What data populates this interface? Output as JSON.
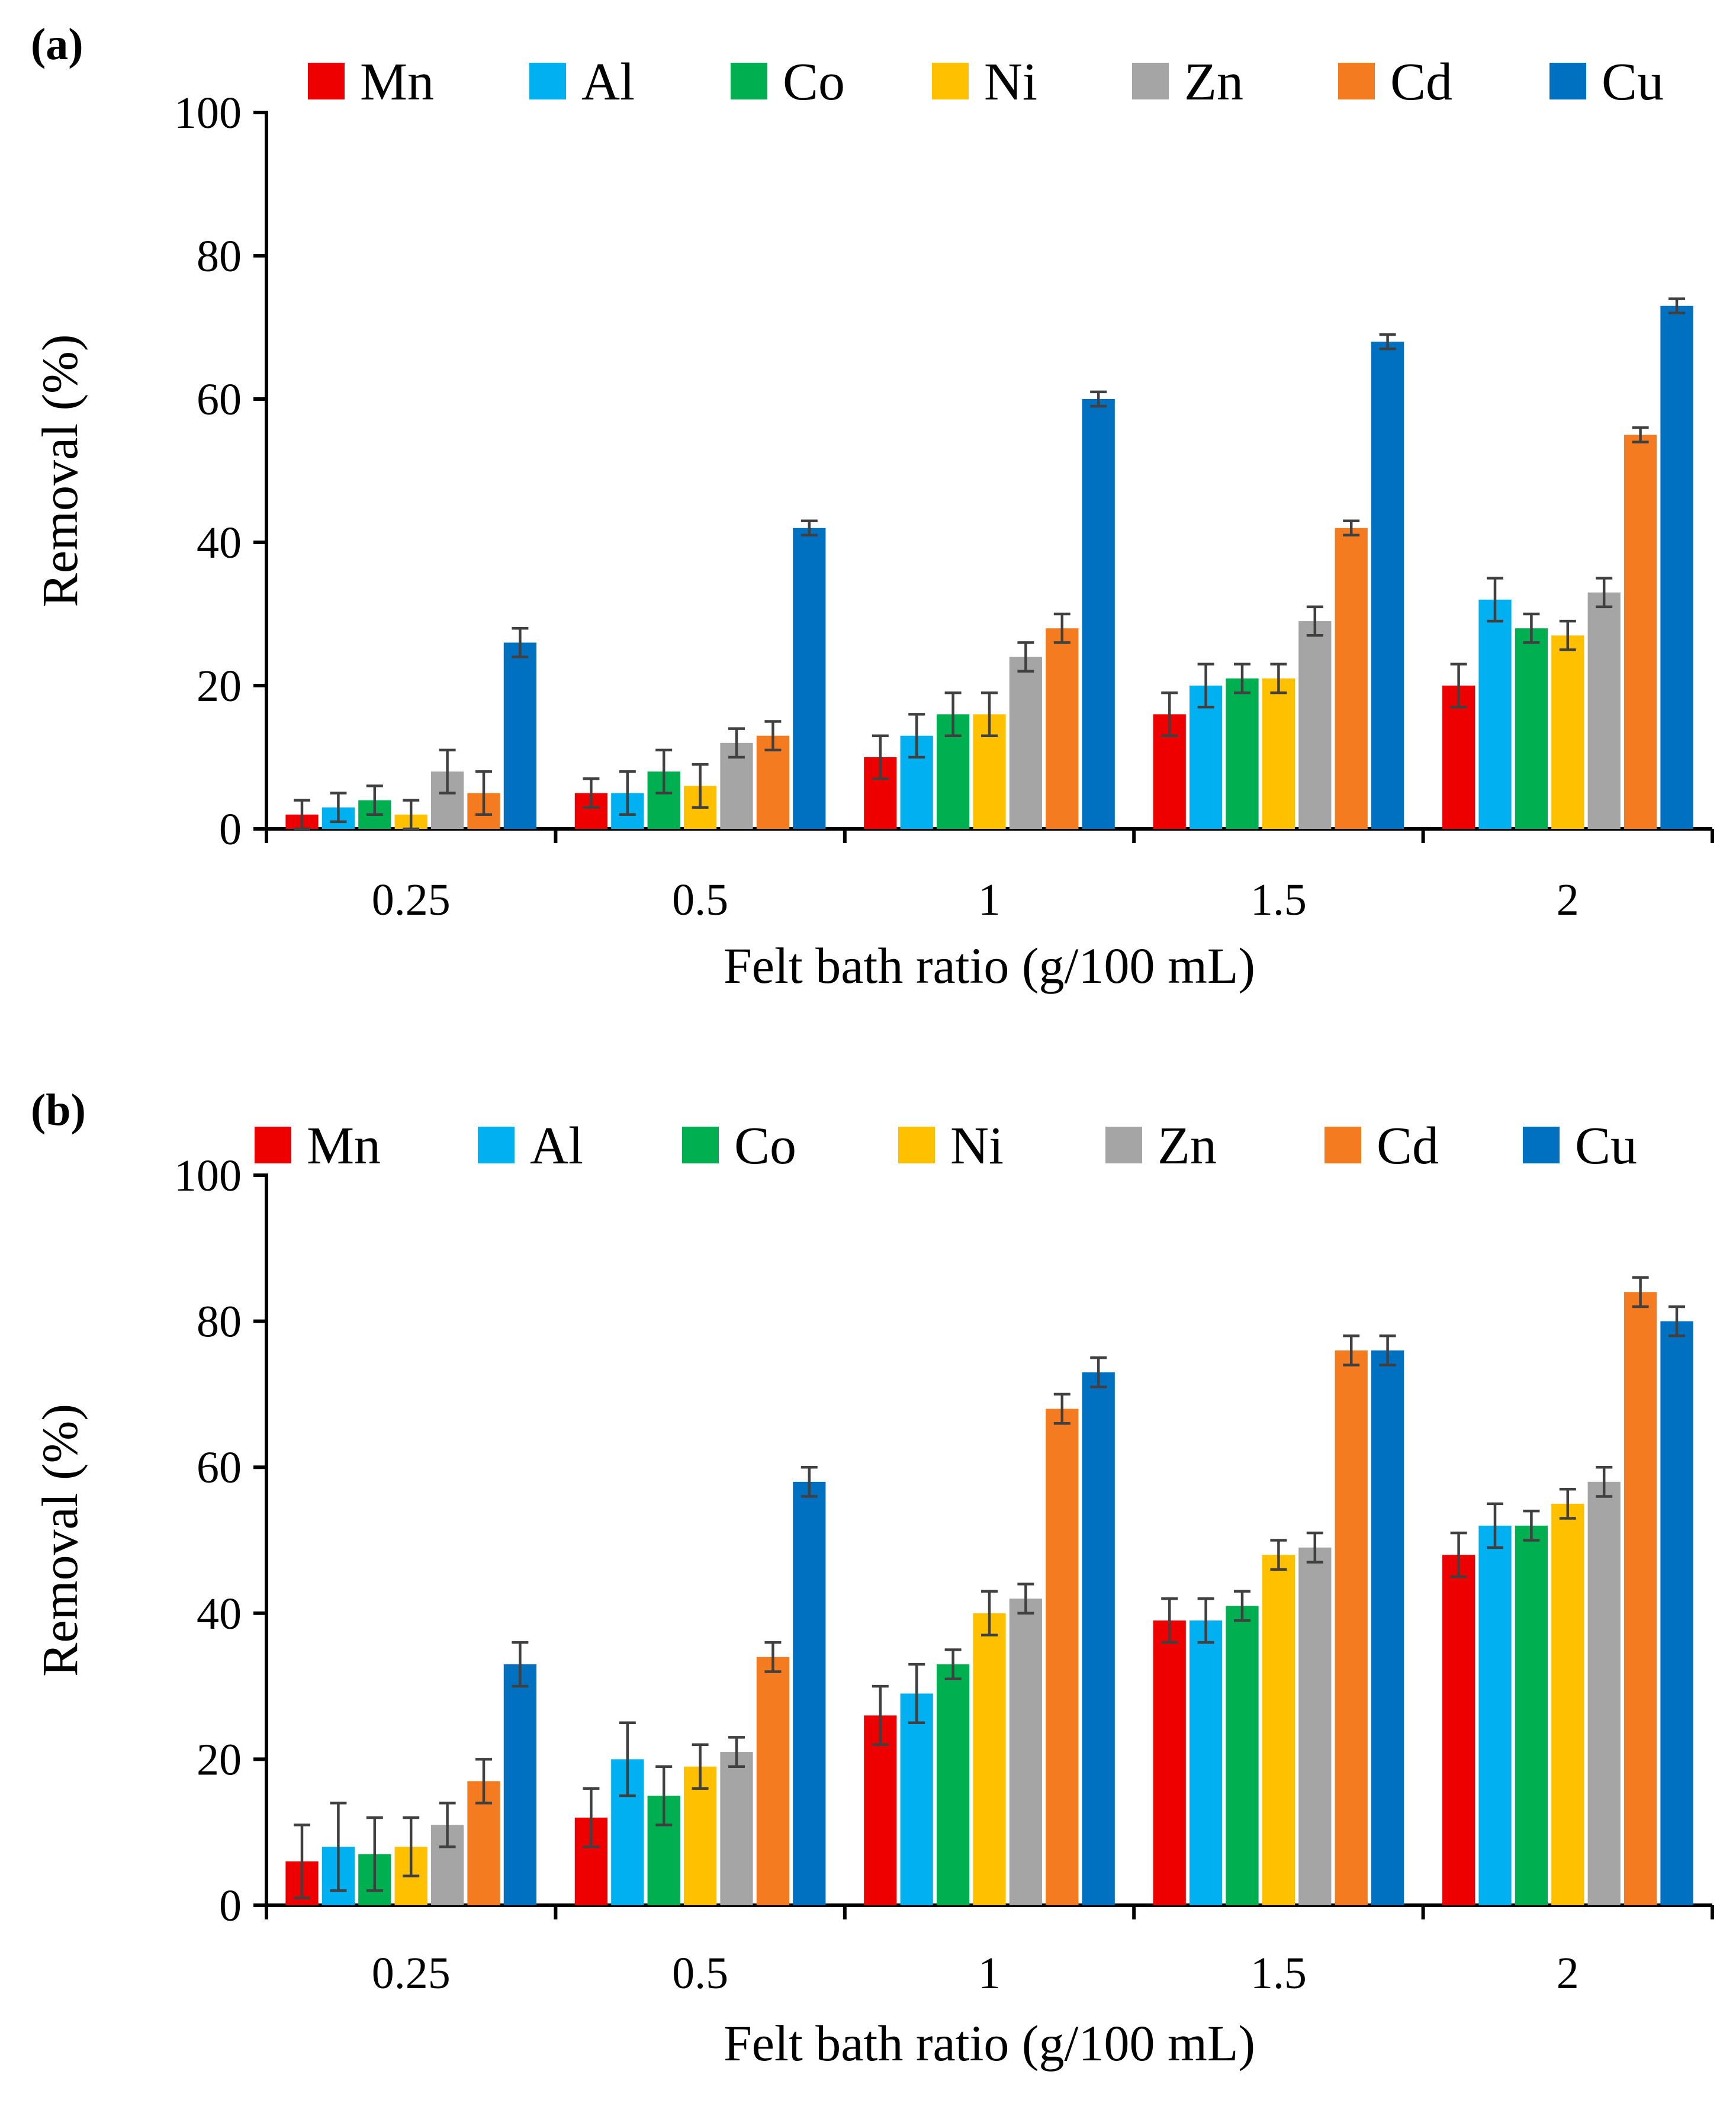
{
  "chart_data": [
    {
      "type": "bar",
      "panel_label": "(a)",
      "xlabel": "Felt bath ratio  (g/100 mL)",
      "ylabel": "Removal (%)",
      "ylim": [
        0,
        100
      ],
      "yticks": [
        "0",
        "20",
        "40",
        "60",
        "80",
        "100"
      ],
      "categories": [
        "0.25",
        "0.5",
        "1",
        "1.5",
        "2"
      ],
      "legend_position": "top",
      "series": [
        {
          "name": "Mn",
          "color": "#ee0000",
          "values": [
            2,
            5,
            10,
            16,
            20
          ],
          "errors": [
            2,
            2,
            3,
            3,
            3
          ]
        },
        {
          "name": "Al",
          "color": "#00b0f0",
          "values": [
            3,
            5,
            13,
            20,
            32
          ],
          "errors": [
            2,
            3,
            3,
            3,
            3
          ]
        },
        {
          "name": "Co",
          "color": "#00b050",
          "values": [
            4,
            8,
            16,
            21,
            28
          ],
          "errors": [
            2,
            3,
            3,
            2,
            2
          ]
        },
        {
          "name": "Ni",
          "color": "#ffc000",
          "values": [
            2,
            6,
            16,
            21,
            27
          ],
          "errors": [
            2,
            3,
            3,
            2,
            2
          ]
        },
        {
          "name": "Zn",
          "color": "#a5a5a5",
          "values": [
            8,
            12,
            24,
            29,
            33
          ],
          "errors": [
            3,
            2,
            2,
            2,
            2
          ]
        },
        {
          "name": "Cd",
          "color": "#f47b20",
          "values": [
            5,
            13,
            28,
            42,
            55
          ],
          "errors": [
            3,
            2,
            2,
            1,
            1
          ]
        },
        {
          "name": "Cu",
          "color": "#0070c0",
          "values": [
            26,
            42,
            60,
            68,
            73
          ],
          "errors": [
            2,
            1,
            1,
            1,
            1
          ]
        }
      ]
    },
    {
      "type": "bar",
      "panel_label": "(b)",
      "xlabel": "Felt bath ratio (g/100 mL)",
      "ylabel": "Removal (%)",
      "ylim": [
        0,
        100
      ],
      "yticks": [
        "0",
        "20",
        "40",
        "60",
        "80",
        "100"
      ],
      "categories": [
        "0.25",
        "0.5",
        "1",
        "1.5",
        "2"
      ],
      "legend_position": "top",
      "series": [
        {
          "name": "Mn",
          "color": "#ee0000",
          "values": [
            6,
            12,
            26,
            39,
            48
          ],
          "errors": [
            5,
            4,
            4,
            3,
            3
          ]
        },
        {
          "name": "Al",
          "color": "#00b0f0",
          "values": [
            8,
            20,
            29,
            39,
            52
          ],
          "errors": [
            6,
            5,
            4,
            3,
            3
          ]
        },
        {
          "name": "Co",
          "color": "#00b050",
          "values": [
            7,
            15,
            33,
            41,
            52
          ],
          "errors": [
            5,
            4,
            2,
            2,
            2
          ]
        },
        {
          "name": "Ni",
          "color": "#ffc000",
          "values": [
            8,
            19,
            40,
            48,
            55
          ],
          "errors": [
            4,
            3,
            3,
            2,
            2
          ]
        },
        {
          "name": "Zn",
          "color": "#a5a5a5",
          "values": [
            11,
            21,
            42,
            49,
            58
          ],
          "errors": [
            3,
            2,
            2,
            2,
            2
          ]
        },
        {
          "name": "Cd",
          "color": "#f47b20",
          "values": [
            17,
            34,
            68,
            76,
            84
          ],
          "errors": [
            3,
            2,
            2,
            2,
            2
          ]
        },
        {
          "name": "Cu",
          "color": "#0070c0",
          "values": [
            33,
            58,
            73,
            76,
            80
          ],
          "errors": [
            3,
            2,
            2,
            2,
            2
          ]
        }
      ]
    }
  ]
}
